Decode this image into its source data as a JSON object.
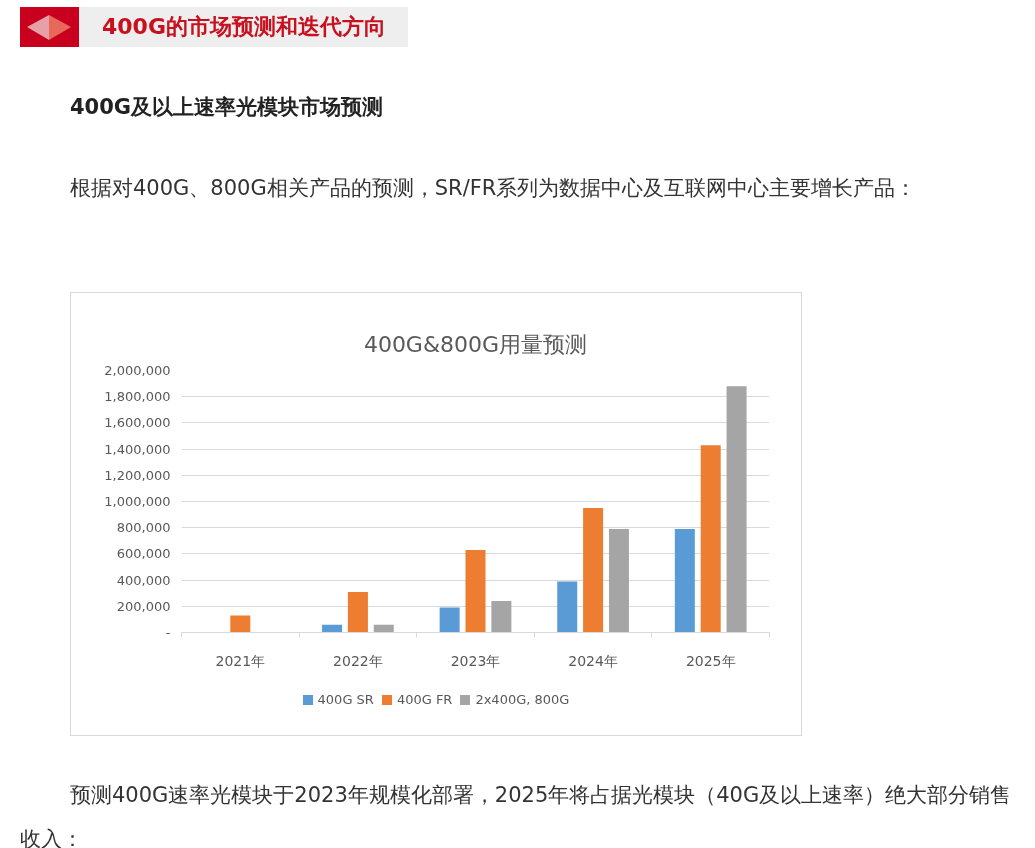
{
  "chart_data": {
    "type": "bar",
    "title": "400G&800G用量预测",
    "annotations": [
      "400G的市场预测和迭代方向",
      "400G及以上速率光模块市场预测",
      "根据对400G、800G相关产品的预测，SR/FR系列为数据中心及互联网中心主要增长产品：",
      "预测400G速率光模块于2023年规模化部署，2025年将占据光模块（40G及以上速率）绝大部分销售收入："
    ],
    "categories": [
      "2021年",
      "2022年",
      "2023年",
      "2024年",
      "2025年"
    ],
    "series": [
      {
        "name": "400G SR",
        "color": "#5b9bd5",
        "values": [
          null,
          60000,
          190000,
          390000,
          790000
        ]
      },
      {
        "name": "400G FR",
        "color": "#ed7d31",
        "values": [
          130000,
          310000,
          630000,
          950000,
          1430000
        ]
      },
      {
        "name": "2x400G, 800G",
        "color": "#a5a5a5",
        "values": [
          null,
          60000,
          240000,
          790000,
          1880000
        ]
      }
    ],
    "ylim": [
      0,
      2000000
    ],
    "yticks": [
      {
        "value": 0,
        "label": "-"
      },
      {
        "value": 200000,
        "label": "200,000"
      },
      {
        "value": 400000,
        "label": "400,000"
      },
      {
        "value": 600000,
        "label": "600,000"
      },
      {
        "value": 800000,
        "label": "800,000"
      },
      {
        "value": 1000000,
        "label": "1,000,000"
      },
      {
        "value": 1200000,
        "label": "1,200,000"
      },
      {
        "value": 1400000,
        "label": "1,400,000"
      },
      {
        "value": 1600000,
        "label": "1,600,000"
      },
      {
        "value": 1800000,
        "label": "1,800,000"
      },
      {
        "value": 2000000,
        "label": "2,000,000"
      }
    ],
    "grid": "y",
    "legend": "bottom"
  }
}
